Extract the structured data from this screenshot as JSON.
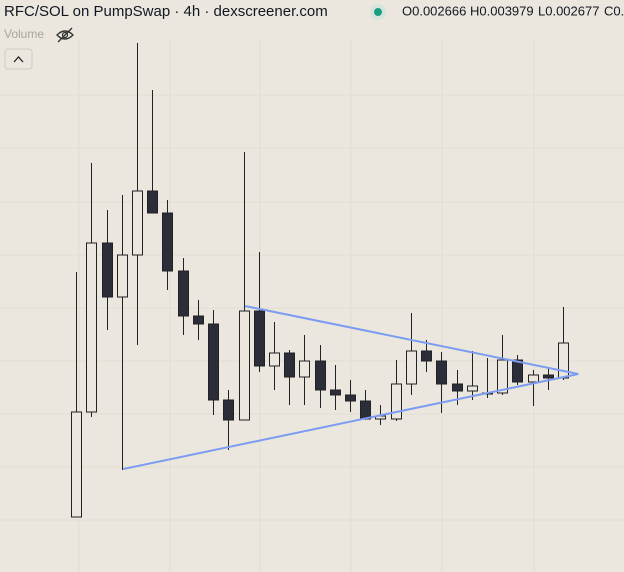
{
  "chart_data": {
    "type": "candlestick",
    "title": "RFC/SOL on PumpSwap · 4h · dexscreener.com",
    "ohlc_labels": [
      "O0.002666",
      "H0.003979",
      "L0.002677",
      "C0."
    ],
    "volume_label": "Volume",
    "x": [
      0,
      1,
      2,
      3,
      4,
      5,
      6,
      7,
      8,
      9,
      10,
      11,
      12,
      13,
      14,
      15,
      16,
      17,
      18,
      19,
      20,
      21,
      22,
      23,
      24,
      25,
      26,
      27,
      28,
      29,
      30,
      31,
      32
    ],
    "open": [
      13,
      118,
      287,
      233,
      275,
      339,
      317,
      259,
      214,
      206,
      130,
      110,
      219,
      164,
      177,
      153,
      169,
      140,
      135,
      129,
      111,
      111,
      146,
      179,
      169,
      146,
      139,
      137,
      137,
      170,
      148,
      155,
      152
    ],
    "high": [
      258,
      367,
      320,
      335,
      487,
      440,
      330,
      272,
      230,
      220,
      140,
      378,
      278,
      208,
      180,
      195,
      185,
      165,
      150,
      140,
      125,
      170,
      217,
      190,
      178,
      160,
      179,
      172,
      195,
      175,
      160,
      162,
      223
    ],
    "low": [
      13,
      113,
      200,
      60,
      185,
      317,
      240,
      195,
      190,
      115,
      80,
      110,
      158,
      140,
      125,
      125,
      122,
      120,
      118,
      110,
      105,
      109,
      135,
      158,
      117,
      125,
      130,
      132,
      135,
      145,
      124,
      140,
      150
    ],
    "close": [
      118,
      287,
      233,
      275,
      339,
      317,
      259,
      214,
      206,
      130,
      110,
      219,
      164,
      177,
      153,
      169,
      140,
      135,
      129,
      111,
      114,
      146,
      179,
      169,
      146,
      139,
      144,
      137,
      170,
      148,
      155,
      152,
      187
    ],
    "up_color": "#ebe7de",
    "down_color": "#2b2e38",
    "outline_color": "#202226",
    "trendlines": [
      {
        "color": "#7b9cf0",
        "x": [
          11.1,
          33
        ],
        "values": [
          224,
          156
        ]
      },
      {
        "color": "#7b9cf0",
        "x": [
          3.1,
          33
        ],
        "values": [
          61,
          156
        ]
      }
    ],
    "xlim": [
      -5,
      36
    ],
    "ylim": [
      0,
      490
    ]
  }
}
